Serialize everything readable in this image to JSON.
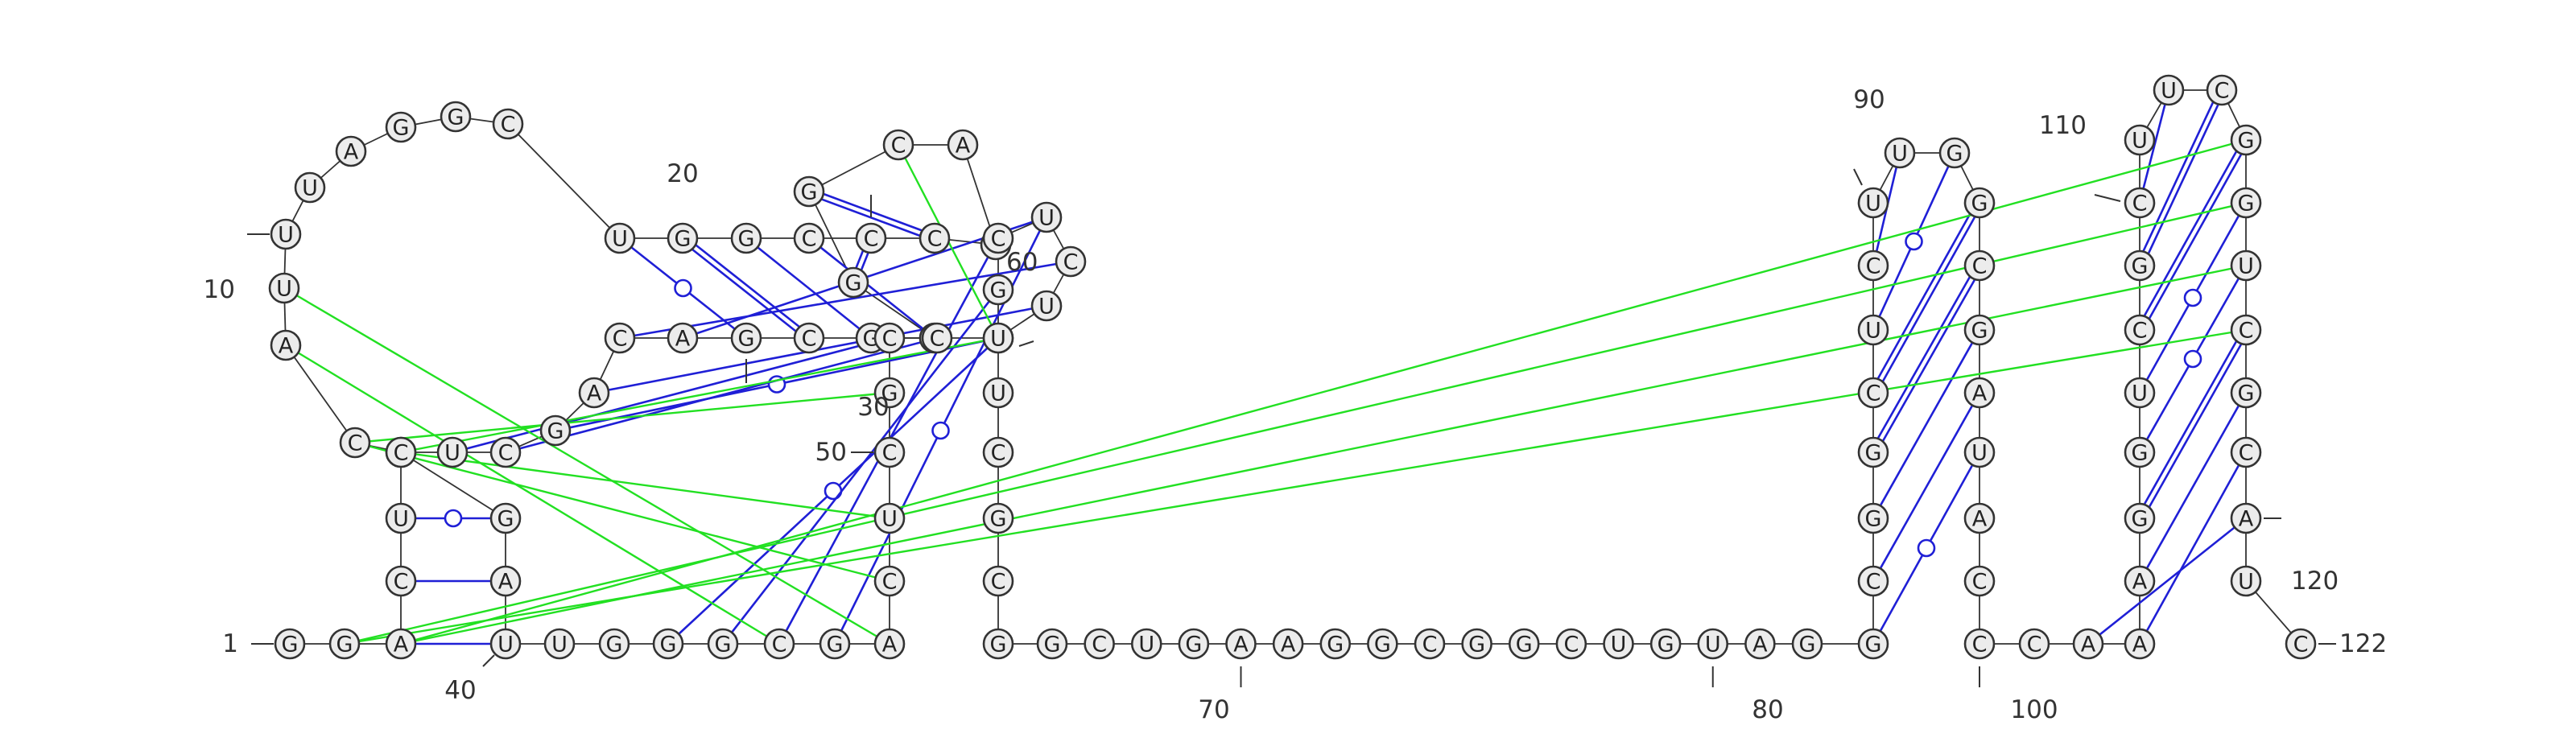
{
  "sequence": [
    "G",
    "G",
    "A",
    "C",
    "U",
    "C",
    "C",
    "A",
    "U",
    "U",
    "U",
    "A",
    "G",
    "G",
    "C",
    "U",
    "G",
    "G",
    "C",
    "C",
    "C",
    "C",
    "A",
    "C",
    "G",
    "G",
    "C",
    "G",
    "C",
    "G",
    "A",
    "C",
    "A",
    "G",
    "C",
    "U",
    "C",
    "G",
    "A",
    "U",
    "U",
    "G",
    "G",
    "G",
    "C",
    "G",
    "A",
    "C",
    "U",
    "C",
    "G",
    "C",
    "C",
    "U",
    "U",
    "C",
    "U",
    "C",
    "G",
    "U",
    "U",
    "C",
    "G",
    "C",
    "G",
    "G",
    "C",
    "U",
    "G",
    "A",
    "A",
    "G",
    "G",
    "C",
    "G",
    "G",
    "C",
    "U",
    "G",
    "U",
    "A",
    "G",
    "G",
    "C",
    "G",
    "G",
    "C",
    "U",
    "C",
    "U",
    "U",
    "G",
    "G",
    "C",
    "G",
    "A",
    "U",
    "A",
    "C",
    "C",
    "C",
    "A",
    "A",
    "A",
    "G",
    "G",
    "U",
    "C",
    "G",
    "C",
    "U",
    "U",
    "C",
    "G",
    "G",
    "U",
    "C",
    "G",
    "C",
    "A",
    "U",
    "C"
  ],
  "labels": [
    {
      "index": 1,
      "text": "1"
    },
    {
      "index": 10,
      "text": "10"
    },
    {
      "index": 20,
      "text": "20"
    },
    {
      "index": 30,
      "text": "30"
    },
    {
      "index": 40,
      "text": "40"
    },
    {
      "index": 50,
      "text": "50"
    },
    {
      "index": 60,
      "text": "60"
    },
    {
      "index": 70,
      "text": "70"
    },
    {
      "index": 80,
      "text": "80"
    },
    {
      "index": 90,
      "text": "90"
    },
    {
      "index": 100,
      "text": "100"
    },
    {
      "index": 110,
      "text": "110"
    },
    {
      "index": 120,
      "text": "120"
    },
    {
      "index": 122,
      "text": "122"
    }
  ],
  "base_pairs": [
    [
      3,
      40
    ],
    [
      4,
      39
    ],
    [
      5,
      38
    ],
    [
      16,
      30
    ],
    [
      17,
      29
    ],
    [
      18,
      28
    ],
    [
      19,
      27
    ],
    [
      20,
      26
    ],
    [
      21,
      25
    ],
    [
      31,
      57
    ],
    [
      32,
      56
    ],
    [
      33,
      55
    ],
    [
      34,
      54
    ],
    [
      35,
      53
    ],
    [
      36,
      52
    ],
    [
      43,
      60
    ],
    [
      44,
      59
    ],
    [
      45,
      58
    ],
    [
      46,
      57
    ],
    [
      83,
      97
    ],
    [
      84,
      96
    ],
    [
      85,
      95
    ],
    [
      86,
      94
    ],
    [
      87,
      93
    ],
    [
      88,
      92
    ],
    [
      89,
      91
    ],
    [
      102,
      120
    ],
    [
      103,
      119
    ],
    [
      104,
      118
    ],
    [
      105,
      117
    ],
    [
      106,
      116
    ],
    [
      107,
      115
    ],
    [
      108,
      114
    ],
    [
      109,
      113
    ],
    [
      110,
      112
    ]
  ],
  "tertiary_links": [
    [
      2,
      117
    ],
    [
      2,
      115
    ],
    [
      3,
      116
    ],
    [
      3,
      114
    ],
    [
      6,
      49
    ],
    [
      7,
      51
    ],
    [
      7,
      48
    ],
    [
      8,
      45
    ],
    [
      9,
      47
    ],
    [
      24,
      60
    ],
    [
      6,
      60
    ]
  ],
  "colors": {
    "backbone": "#333333",
    "pair": "#1f1fd6",
    "tertiary": "#22e022",
    "node_fill": "#ececec"
  }
}
